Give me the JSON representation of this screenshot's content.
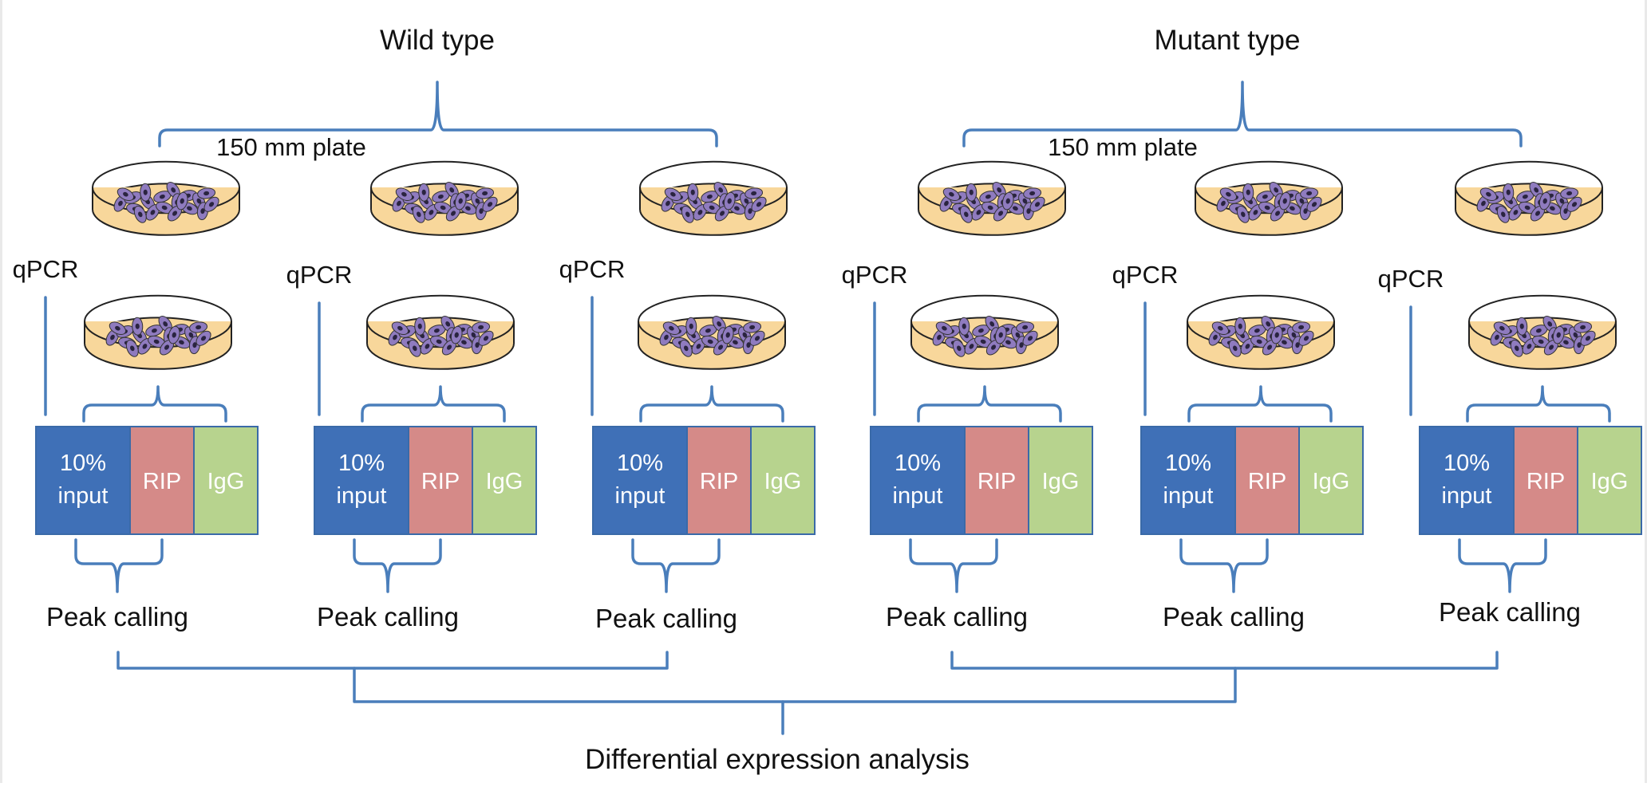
{
  "groups": [
    {
      "title": "Wild type",
      "plate_label": "150 mm plate",
      "replicates": [
        {
          "qpcr_label": "qPCR",
          "boxes": [
            "10% input",
            "RIP",
            "IgG"
          ],
          "peak_label": "Peak calling"
        },
        {
          "qpcr_label": "qPCR",
          "boxes": [
            "10% input",
            "RIP",
            "IgG"
          ],
          "peak_label": "Peak calling"
        },
        {
          "qpcr_label": "qPCR",
          "boxes": [
            "10% input",
            "RIP",
            "IgG"
          ],
          "peak_label": "Peak calling"
        }
      ]
    },
    {
      "title": "Mutant type",
      "plate_label": "150 mm plate",
      "replicates": [
        {
          "qpcr_label": "qPCR",
          "boxes": [
            "10% input",
            "RIP",
            "IgG"
          ],
          "peak_label": "Peak calling"
        },
        {
          "qpcr_label": "qPCR",
          "boxes": [
            "10% input",
            "RIP",
            "IgG"
          ],
          "peak_label": "Peak calling"
        },
        {
          "qpcr_label": "qPCR",
          "boxes": [
            "10% input",
            "RIP",
            "IgG"
          ],
          "peak_label": "Peak calling"
        }
      ]
    }
  ],
  "final_label": "Differential expression analysis",
  "colors": {
    "connector": "#4a7ebb",
    "input_box": "#3f70b7",
    "rip_box": "#d58a88",
    "igg_box": "#b7d38e",
    "dish_fill": "#f8d79b",
    "cell_fill": "#8f7bbf",
    "nucleus": "#2a2440",
    "text": "#111111",
    "box_text": "#ffffff"
  }
}
